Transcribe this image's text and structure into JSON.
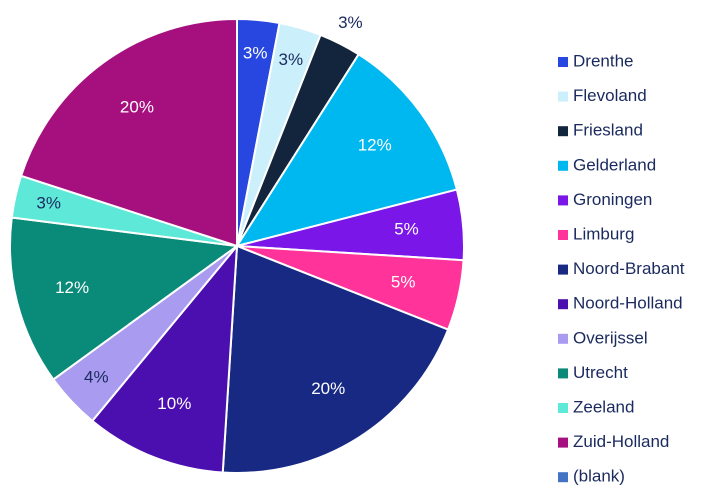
{
  "chart_data": {
    "type": "pie",
    "categories": [
      "Drenthe",
      "Flevoland",
      "Friesland",
      "Gelderland",
      "Groningen",
      "Limburg",
      "Noord-Brabant",
      "Noord-Holland",
      "Overijssel",
      "Utrecht",
      "Zeeland",
      "Zuid-Holland",
      "(blank)"
    ],
    "values": [
      3,
      3,
      3,
      12,
      5,
      5,
      20,
      10,
      4,
      12,
      3,
      20,
      0
    ],
    "value_labels": [
      "3%",
      "3%",
      "3%",
      "12%",
      "5%",
      "5%",
      "20%",
      "10%",
      "4%",
      "12%",
      "3%",
      "20%",
      null
    ],
    "colors": [
      "#2747e0",
      "#ccf0fb",
      "#13253d",
      "#00b8f0",
      "#7a16e8",
      "#ff3399",
      "#172983",
      "#4b0fb0",
      "#a99cf0",
      "#0a8a78",
      "#5ee8d8",
      "#a6107e",
      "#4472c4"
    ],
    "legend": "right"
  }
}
